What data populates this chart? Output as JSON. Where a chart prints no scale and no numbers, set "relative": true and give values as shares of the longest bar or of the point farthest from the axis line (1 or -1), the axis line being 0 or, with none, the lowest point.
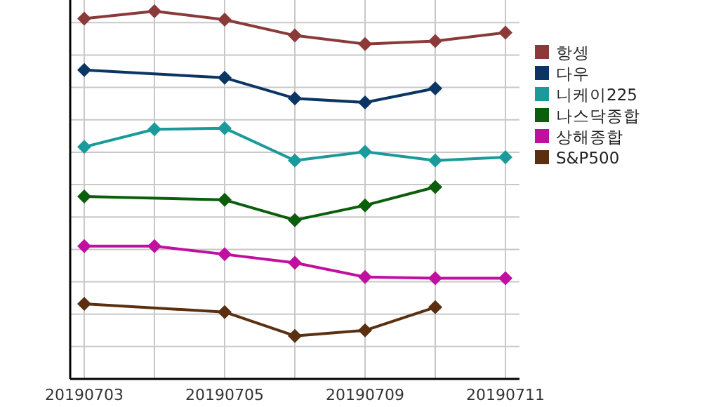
{
  "chart_data": {
    "type": "line",
    "relative": true,
    "categories": [
      "20190703",
      null,
      "20190705",
      null,
      "20190709",
      null,
      "20190711"
    ],
    "grid": true,
    "legend": "right",
    "marker": "diamond",
    "line_style": "solid",
    "series": [
      {
        "name": "항셍",
        "color": "#8b3a3a",
        "values": [
          0.98,
          1.0,
          0.977,
          0.934,
          0.911,
          0.919,
          0.942
        ]
      },
      {
        "name": "다우",
        "color": "#0b3563",
        "values": [
          0.84,
          null,
          0.819,
          0.763,
          0.752,
          0.79,
          null
        ]
      },
      {
        "name": "니케이225",
        "color": "#1a9a9a",
        "values": [
          0.631,
          0.679,
          0.682,
          0.594,
          0.618,
          0.594,
          0.603
        ]
      },
      {
        "name": "나스닥종합",
        "color": "#0b5e0b",
        "values": [
          0.496,
          null,
          0.487,
          0.432,
          0.472,
          0.522,
          null
        ]
      },
      {
        "name": "상해종합",
        "color": "#c010a0",
        "values": [
          0.361,
          0.361,
          0.339,
          0.316,
          0.277,
          0.274,
          0.274
        ]
      },
      {
        "name": "S&P500",
        "color": "#5a3010",
        "values": [
          0.204,
          null,
          0.182,
          0.117,
          0.132,
          0.195,
          null
        ]
      }
    ]
  }
}
